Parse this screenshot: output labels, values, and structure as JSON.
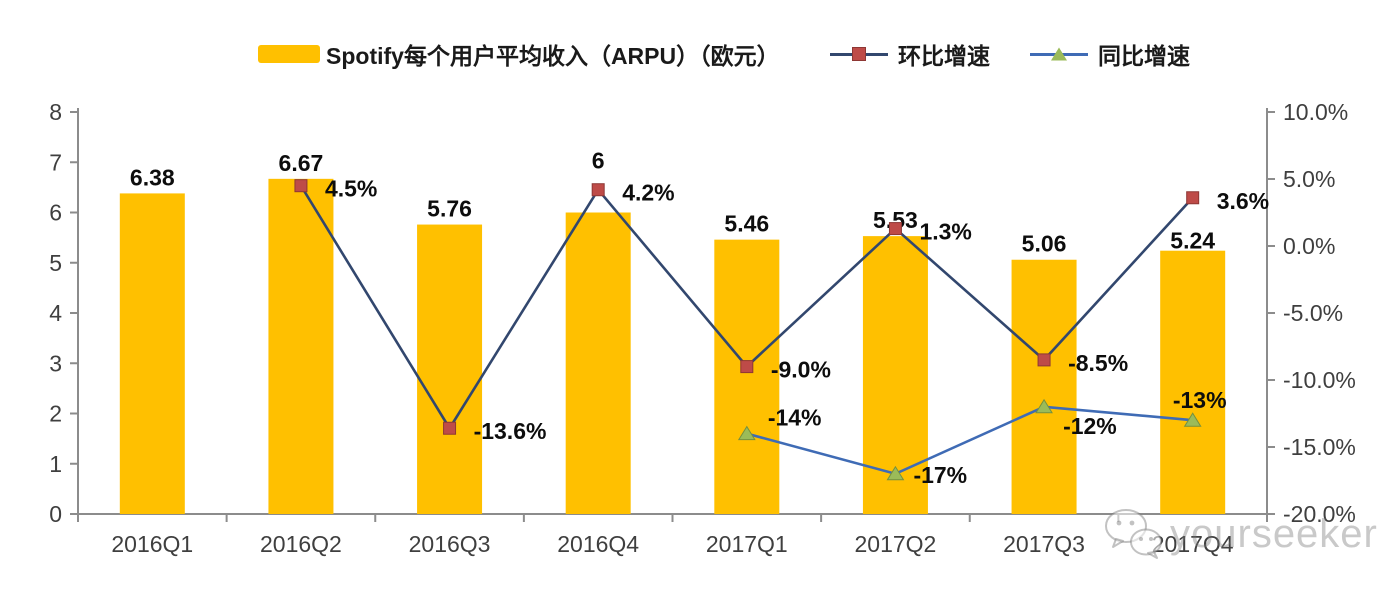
{
  "watermark": {
    "text": "yourseeker",
    "icon": "wechat-icon"
  },
  "chart_data": {
    "type": "combo",
    "categories": [
      "2016Q1",
      "2016Q2",
      "2016Q3",
      "2016Q4",
      "2017Q1",
      "2017Q2",
      "2017Q3",
      "2017Q4"
    ],
    "series": [
      {
        "name": "Spotify每个用户平均收入（ARPU）（欧元）",
        "type": "bar",
        "axis": "left",
        "color": "#FFC000",
        "values": [
          6.38,
          6.67,
          5.76,
          6,
          5.46,
          5.53,
          5.06,
          5.24
        ],
        "labels": [
          "6.38",
          "6.67",
          "5.76",
          "6",
          "5.46",
          "5.53",
          "5.06",
          "5.24"
        ]
      },
      {
        "name": "环比增速",
        "type": "line",
        "axis": "right",
        "color": "#32476E",
        "marker": "square",
        "marker_color": "#BE4B48",
        "marker_edge": "#8E3734",
        "values": [
          null,
          4.5,
          -13.6,
          4.2,
          -9.0,
          1.3,
          -8.5,
          3.6
        ],
        "labels": [
          null,
          "4.5%",
          "-13.6%",
          "4.2%",
          "-9.0%",
          "1.3%",
          "-8.5%",
          "3.6%"
        ]
      },
      {
        "name": "同比增速",
        "type": "line",
        "axis": "right",
        "color": "#3F6BB5",
        "marker": "triangle",
        "marker_color": "#9BBB59",
        "marker_edge": "#75903E",
        "values": [
          null,
          null,
          null,
          null,
          -14,
          -17,
          -12,
          -13
        ],
        "labels": [
          null,
          null,
          null,
          null,
          "-14%",
          "-17%",
          "-12%",
          "-13%"
        ]
      }
    ],
    "left_axis": {
      "min": 0,
      "max": 8,
      "ticks": [
        "8",
        "7",
        "6",
        "5",
        "4",
        "3",
        "2",
        "1",
        "0"
      ]
    },
    "right_axis": {
      "min": -20,
      "max": 10,
      "ticks": [
        "10.0%",
        "5.0%",
        "0.0%",
        "-5.0%",
        "-10.0%",
        "-15.0%",
        "-20.0%"
      ]
    },
    "legend_position": "top",
    "grid": false
  }
}
